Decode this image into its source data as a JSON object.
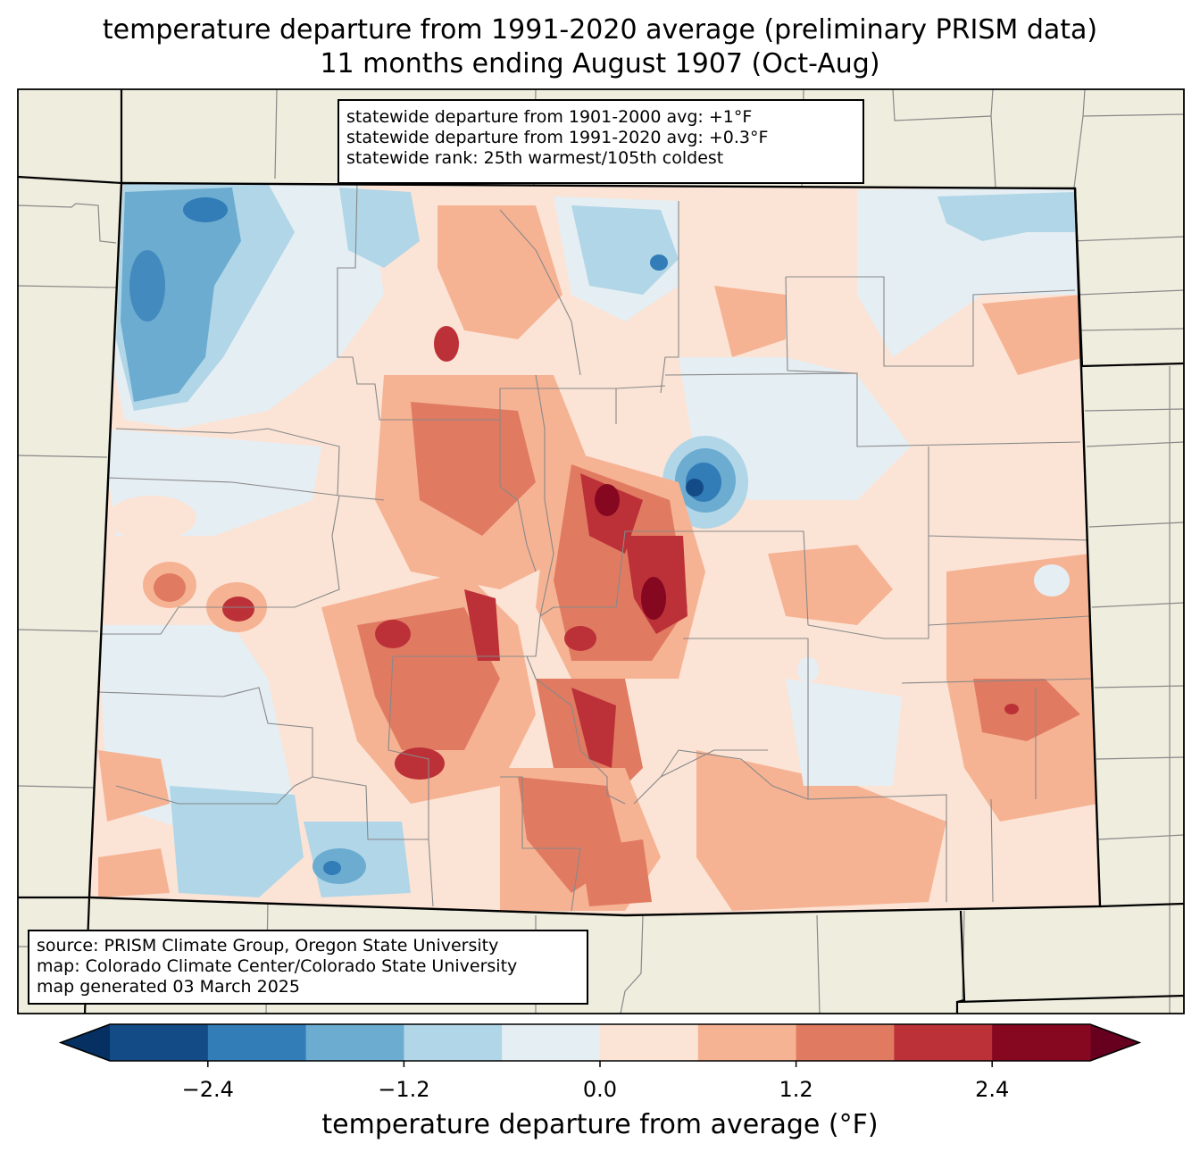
{
  "title": {
    "line1": "temperature departure from 1991-2020 average (preliminary PRISM data)",
    "line2": "11 months ending August 1907 (Oct-Aug)"
  },
  "stats_box": {
    "line1": "statewide departure from 1901-2000 avg: +1°F",
    "line2": "statewide departure from 1991-2020 avg: +0.3°F",
    "line3": "statewide rank: 25th warmest/105th coldest"
  },
  "source_box": {
    "line1": "source: PRISM Climate Group, Oregon State University",
    "line2": "map: Colorado Climate Center/Colorado State University",
    "line3": "map generated 03 March 2025"
  },
  "colorbar": {
    "label": "temperature departure from average (°F)",
    "ticks": [
      "−2.4",
      "−1.2",
      "0.0",
      "1.2",
      "2.4"
    ],
    "tick_values": [
      -2.4,
      -1.2,
      0.0,
      1.2,
      2.4
    ],
    "levels": [
      -3.0,
      -2.4,
      -1.8,
      -1.2,
      -0.6,
      0.0,
      0.6,
      1.2,
      1.8,
      2.4,
      3.0
    ],
    "colors": [
      "#67001f"
    ],
    "under_color": "#053061",
    "over_color": "#67001f",
    "bin_colors": [
      "#134b87",
      "#327cb7",
      "#6bacd0",
      "#b1d6e7",
      "#e5eef3",
      "#fbe4d6",
      "#f6b394",
      "#e07b62",
      "#bc3138",
      "#850720"
    ]
  },
  "map_colors": {
    "background": "#efedde",
    "state_border": "#000000",
    "county_border": "#888888"
  }
}
